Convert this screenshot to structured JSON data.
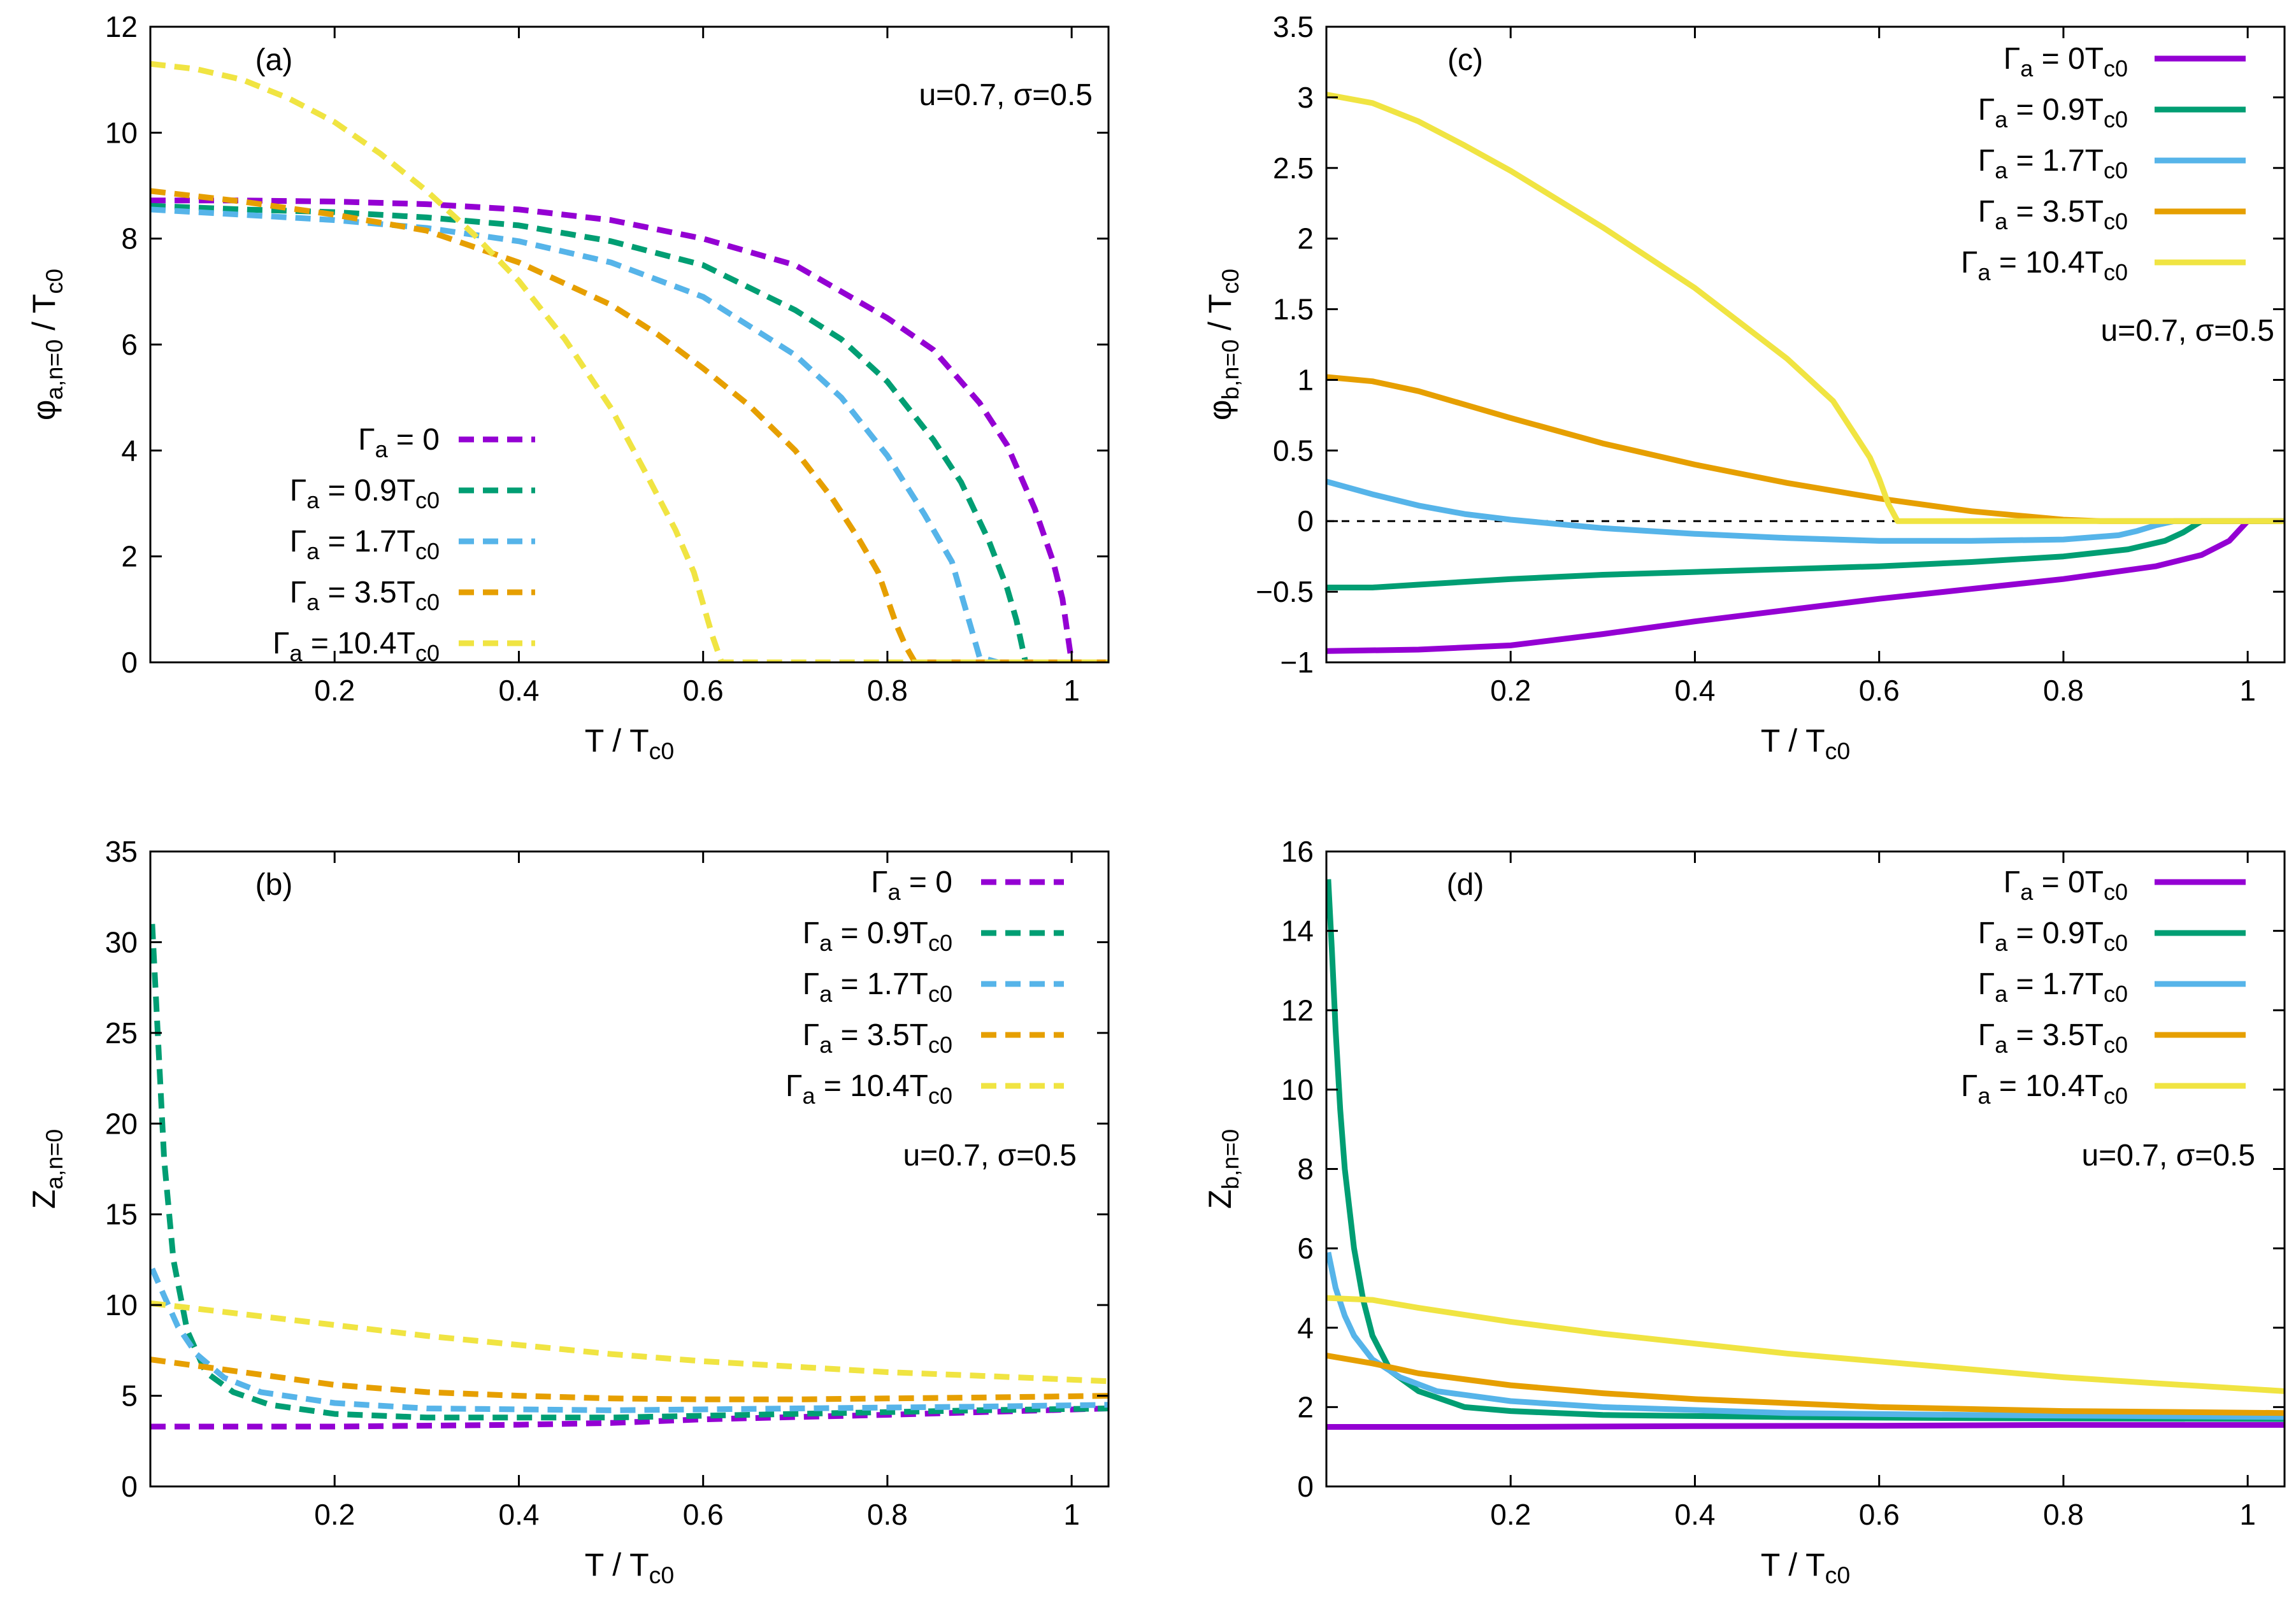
{
  "colors": {
    "purple": "#9400d3",
    "green": "#009e73",
    "skyblue": "#56b4e9",
    "orange": "#e69f00",
    "yellow": "#f0e442"
  },
  "chart_data": [
    {
      "id": "a",
      "type": "line",
      "panel_label": "(a)",
      "params": "u=0.7, σ=0.5",
      "xlabel": "T / T",
      "xlabel_sub": "c0",
      "ylabel": "φ",
      "ylabel_sub": "a,n=0",
      "ylabel_rest": " / T",
      "ylabel_sub2": "c0",
      "xlim": [
        0.0,
        1.04
      ],
      "ylim": [
        0,
        12
      ],
      "xticks": [
        "0.2",
        "0.4",
        "0.6",
        "0.8",
        "1"
      ],
      "yticks": [
        "0",
        "2",
        "4",
        "6",
        "8",
        "10",
        "12"
      ],
      "legend_position": "bottom-left",
      "line_style": "dashed",
      "series": [
        {
          "name": "Γ",
          "sub": "a",
          "rest": " = 0",
          "sub2": "",
          "color": "#9400d3",
          "x": [
            0.0,
            0.1,
            0.2,
            0.3,
            0.4,
            0.5,
            0.6,
            0.7,
            0.8,
            0.85,
            0.9,
            0.93,
            0.96,
            0.98,
            0.99,
            1.0,
            1.04
          ],
          "y": [
            8.72,
            8.72,
            8.7,
            8.65,
            8.55,
            8.35,
            8.0,
            7.5,
            6.5,
            5.9,
            4.9,
            4.1,
            2.9,
            1.9,
            1.2,
            0.0,
            0.0
          ]
        },
        {
          "name": "Γ",
          "sub": "a",
          "rest": " = 0.9T",
          "sub2": "c0",
          "color": "#009e73",
          "x": [
            0.0,
            0.1,
            0.2,
            0.3,
            0.4,
            0.5,
            0.6,
            0.7,
            0.75,
            0.8,
            0.85,
            0.88,
            0.91,
            0.93,
            0.94,
            0.95,
            1.04
          ],
          "y": [
            8.62,
            8.55,
            8.5,
            8.4,
            8.25,
            7.95,
            7.5,
            6.65,
            6.1,
            5.3,
            4.2,
            3.4,
            2.3,
            1.4,
            0.8,
            0.0,
            0.0
          ]
        },
        {
          "name": "Γ",
          "sub": "a",
          "rest": " = 1.7T",
          "sub2": "c0",
          "color": "#56b4e9",
          "x": [
            0.0,
            0.1,
            0.2,
            0.3,
            0.4,
            0.5,
            0.6,
            0.7,
            0.75,
            0.8,
            0.84,
            0.87,
            0.88,
            0.89,
            0.9,
            0.92,
            1.04
          ],
          "y": [
            8.55,
            8.45,
            8.35,
            8.2,
            7.95,
            7.55,
            6.9,
            5.8,
            5.0,
            3.9,
            2.8,
            1.9,
            1.3,
            0.7,
            0.1,
            0.0,
            0.0
          ]
        },
        {
          "name": "Γ",
          "sub": "a",
          "rest": " = 3.5T",
          "sub2": "c0",
          "color": "#e69f00",
          "x": [
            0.0,
            0.1,
            0.2,
            0.3,
            0.4,
            0.5,
            0.55,
            0.6,
            0.65,
            0.7,
            0.74,
            0.77,
            0.79,
            0.8,
            0.81,
            0.82,
            0.83,
            1.04
          ],
          "y": [
            8.9,
            8.7,
            8.45,
            8.15,
            7.55,
            6.75,
            6.2,
            5.55,
            4.85,
            4.0,
            3.1,
            2.3,
            1.7,
            1.2,
            0.7,
            0.3,
            0.0,
            0.0
          ]
        },
        {
          "name": "Γ",
          "sub": "a",
          "rest": " = 10.4T",
          "sub2": "c0",
          "color": "#f0e442",
          "x": [
            0.0,
            0.05,
            0.1,
            0.15,
            0.2,
            0.25,
            0.3,
            0.35,
            0.4,
            0.45,
            0.5,
            0.54,
            0.57,
            0.59,
            0.6,
            0.61,
            0.62,
            1.04
          ],
          "y": [
            11.3,
            11.2,
            11.0,
            10.65,
            10.2,
            9.6,
            8.9,
            8.1,
            7.2,
            6.1,
            4.8,
            3.5,
            2.5,
            1.7,
            1.1,
            0.5,
            0.0,
            0.0
          ]
        }
      ]
    },
    {
      "id": "b",
      "type": "line",
      "panel_label": "(b)",
      "params": "u=0.7, σ=0.5",
      "xlabel": "T / T",
      "xlabel_sub": "c0",
      "ylabel": "Z",
      "ylabel_sub": "a,n=0",
      "ylabel_rest": "",
      "ylabel_sub2": "",
      "xlim": [
        0.0,
        1.04
      ],
      "ylim": [
        0,
        35
      ],
      "xticks": [
        "0.2",
        "0.4",
        "0.6",
        "0.8",
        "1"
      ],
      "yticks": [
        "0",
        "5",
        "10",
        "15",
        "20",
        "25",
        "30",
        "35"
      ],
      "legend_position": "top-right",
      "line_style": "dashed",
      "series": [
        {
          "name": "Γ",
          "sub": "a",
          "rest": " = 0",
          "sub2": "",
          "color": "#9400d3",
          "x": [
            0.0,
            0.2,
            0.4,
            0.5,
            0.6,
            0.8,
            1.04
          ],
          "y": [
            3.3,
            3.3,
            3.4,
            3.5,
            3.7,
            3.95,
            4.3
          ]
        },
        {
          "name": "Γ",
          "sub": "a",
          "rest": " = 0.9T",
          "sub2": "c0",
          "color": "#009e73",
          "x": [
            0.002,
            0.008,
            0.015,
            0.025,
            0.04,
            0.06,
            0.09,
            0.13,
            0.2,
            0.3,
            0.5,
            0.7,
            0.9,
            1.04
          ],
          "y": [
            31.0,
            25.0,
            18.0,
            12.5,
            8.6,
            6.3,
            5.2,
            4.5,
            4.0,
            3.8,
            3.8,
            4.0,
            4.2,
            4.3
          ]
        },
        {
          "name": "Γ",
          "sub": "a",
          "rest": " = 1.7T",
          "sub2": "c0",
          "color": "#56b4e9",
          "x": [
            0.002,
            0.015,
            0.03,
            0.05,
            0.08,
            0.12,
            0.2,
            0.3,
            0.5,
            0.7,
            0.9,
            1.04
          ],
          "y": [
            12.0,
            10.5,
            8.8,
            7.3,
            6.0,
            5.2,
            4.6,
            4.3,
            4.2,
            4.3,
            4.4,
            4.5
          ]
        },
        {
          "name": "Γ",
          "sub": "a",
          "rest": " = 3.5T",
          "sub2": "c0",
          "color": "#e69f00",
          "x": [
            0.0,
            0.1,
            0.2,
            0.3,
            0.4,
            0.5,
            0.6,
            0.7,
            0.8,
            0.9,
            1.04
          ],
          "y": [
            7.0,
            6.3,
            5.6,
            5.2,
            5.0,
            4.85,
            4.8,
            4.8,
            4.85,
            4.9,
            5.0
          ]
        },
        {
          "name": "Γ",
          "sub": "a",
          "rest": " = 10.4T",
          "sub2": "c0",
          "color": "#f0e442",
          "x": [
            0.0,
            0.1,
            0.2,
            0.3,
            0.4,
            0.5,
            0.6,
            0.7,
            0.8,
            0.9,
            1.04
          ],
          "y": [
            10.1,
            9.5,
            8.9,
            8.3,
            7.8,
            7.3,
            6.9,
            6.6,
            6.3,
            6.1,
            5.8
          ]
        }
      ]
    },
    {
      "id": "c",
      "type": "line",
      "panel_label": "(c)",
      "params": "u=0.7, σ=0.5",
      "xlabel": "T / T",
      "xlabel_sub": "c0",
      "ylabel": "φ",
      "ylabel_sub": "b,n=0",
      "ylabel_rest": " / T",
      "ylabel_sub2": "c0",
      "xlim": [
        0.0,
        1.04
      ],
      "ylim": [
        -1,
        3.5
      ],
      "xticks": [
        "0.2",
        "0.4",
        "0.6",
        "0.8",
        "1"
      ],
      "yticks": [
        "−1",
        "−0.5",
        "0",
        "0.5",
        "1",
        "1.5",
        "2",
        "2.5",
        "3",
        "3.5"
      ],
      "ytick_values": [
        -1,
        -0.5,
        0,
        0.5,
        1,
        1.5,
        2,
        2.5,
        3,
        3.5
      ],
      "zero_line": true,
      "legend_position": "top-right",
      "line_style": "solid",
      "series": [
        {
          "name": "Γ",
          "sub": "a",
          "rest": " = 0T",
          "sub2": "c0",
          "color": "#9400d3",
          "x": [
            0.0,
            0.1,
            0.2,
            0.3,
            0.4,
            0.5,
            0.6,
            0.7,
            0.8,
            0.9,
            0.95,
            0.98,
            0.99,
            1.0,
            1.04
          ],
          "y": [
            -0.92,
            -0.91,
            -0.88,
            -0.8,
            -0.71,
            -0.63,
            -0.55,
            -0.48,
            -0.41,
            -0.32,
            -0.24,
            -0.14,
            -0.07,
            0.0,
            0.0
          ]
        },
        {
          "name": "Γ",
          "sub": "a",
          "rest": " = 0.9T",
          "sub2": "c0",
          "color": "#009e73",
          "x": [
            0.0,
            0.05,
            0.1,
            0.2,
            0.3,
            0.4,
            0.5,
            0.6,
            0.7,
            0.8,
            0.87,
            0.91,
            0.93,
            0.94,
            0.95,
            1.04
          ],
          "y": [
            -0.47,
            -0.47,
            -0.45,
            -0.41,
            -0.38,
            -0.36,
            -0.34,
            -0.32,
            -0.29,
            -0.25,
            -0.2,
            -0.14,
            -0.08,
            -0.04,
            0.0,
            0.0
          ]
        },
        {
          "name": "Γ",
          "sub": "a",
          "rest": " = 1.7T",
          "sub2": "c0",
          "color": "#56b4e9",
          "x": [
            0.0,
            0.05,
            0.1,
            0.15,
            0.2,
            0.3,
            0.4,
            0.5,
            0.6,
            0.7,
            0.8,
            0.86,
            0.88,
            0.9,
            0.92,
            1.04
          ],
          "y": [
            0.28,
            0.19,
            0.11,
            0.05,
            0.01,
            -0.05,
            -0.09,
            -0.12,
            -0.14,
            -0.14,
            -0.13,
            -0.1,
            -0.07,
            -0.03,
            0.0,
            0.0
          ]
        },
        {
          "name": "Γ",
          "sub": "a",
          "rest": " = 3.5T",
          "sub2": "c0",
          "color": "#e69f00",
          "x": [
            0.0,
            0.05,
            0.1,
            0.2,
            0.3,
            0.4,
            0.5,
            0.6,
            0.7,
            0.8,
            0.84,
            1.04
          ],
          "y": [
            1.02,
            0.99,
            0.92,
            0.73,
            0.55,
            0.4,
            0.27,
            0.16,
            0.07,
            0.01,
            0.0,
            0.0
          ]
        },
        {
          "name": "Γ",
          "sub": "a",
          "rest": " = 10.4T",
          "sub2": "c0",
          "color": "#f0e442",
          "x": [
            0.0,
            0.05,
            0.1,
            0.15,
            0.2,
            0.3,
            0.4,
            0.5,
            0.55,
            0.59,
            0.6,
            0.61,
            0.62,
            1.04
          ],
          "y": [
            3.02,
            2.96,
            2.83,
            2.66,
            2.48,
            2.08,
            1.65,
            1.15,
            0.85,
            0.45,
            0.3,
            0.12,
            0.0,
            0.0
          ]
        }
      ]
    },
    {
      "id": "d",
      "type": "line",
      "panel_label": "(d)",
      "params": "u=0.7, σ=0.5",
      "xlabel": "T / T",
      "xlabel_sub": "c0",
      "ylabel": "Z",
      "ylabel_sub": "b,n=0",
      "ylabel_rest": "",
      "ylabel_sub2": "",
      "xlim": [
        0.0,
        1.04
      ],
      "ylim": [
        0,
        16
      ],
      "xticks": [
        "0.2",
        "0.4",
        "0.6",
        "0.8",
        "1"
      ],
      "yticks": [
        "0",
        "2",
        "4",
        "6",
        "8",
        "10",
        "12",
        "14",
        "16"
      ],
      "legend_position": "top-right",
      "line_style": "solid",
      "series": [
        {
          "name": "Γ",
          "sub": "a",
          "rest": " = 0T",
          "sub2": "c0",
          "color": "#9400d3",
          "x": [
            0.0,
            0.2,
            0.4,
            0.6,
            0.8,
            1.04
          ],
          "y": [
            1.5,
            1.5,
            1.52,
            1.53,
            1.55,
            1.55
          ]
        },
        {
          "name": "Γ",
          "sub": "a",
          "rest": " = 0.9T",
          "sub2": "c0",
          "color": "#009e73",
          "x": [
            0.002,
            0.006,
            0.01,
            0.015,
            0.02,
            0.03,
            0.04,
            0.05,
            0.07,
            0.1,
            0.15,
            0.2,
            0.3,
            0.5,
            0.7,
            1.04
          ],
          "y": [
            15.3,
            13.5,
            11.5,
            9.5,
            8.0,
            6.0,
            4.7,
            3.8,
            2.9,
            2.4,
            2.0,
            1.9,
            1.8,
            1.75,
            1.72,
            1.7
          ]
        },
        {
          "name": "Γ",
          "sub": "a",
          "rest": " = 1.7T",
          "sub2": "c0",
          "color": "#56b4e9",
          "x": [
            0.002,
            0.01,
            0.02,
            0.03,
            0.05,
            0.08,
            0.12,
            0.2,
            0.3,
            0.5,
            0.7,
            1.04
          ],
          "y": [
            5.9,
            5.0,
            4.3,
            3.8,
            3.2,
            2.75,
            2.4,
            2.15,
            2.0,
            1.85,
            1.8,
            1.75
          ]
        },
        {
          "name": "Γ",
          "sub": "a",
          "rest": " = 3.5T",
          "sub2": "c0",
          "color": "#e69f00",
          "x": [
            0.0,
            0.05,
            0.1,
            0.2,
            0.3,
            0.4,
            0.5,
            0.6,
            0.7,
            0.8,
            1.04
          ],
          "y": [
            3.3,
            3.1,
            2.85,
            2.55,
            2.35,
            2.2,
            2.1,
            2.0,
            1.95,
            1.9,
            1.85
          ]
        },
        {
          "name": "Γ",
          "sub": "a",
          "rest": " = 10.4T",
          "sub2": "c0",
          "color": "#f0e442",
          "x": [
            0.0,
            0.05,
            0.1,
            0.2,
            0.3,
            0.4,
            0.5,
            0.6,
            0.7,
            0.8,
            0.9,
            1.04
          ],
          "y": [
            4.75,
            4.7,
            4.5,
            4.15,
            3.85,
            3.6,
            3.35,
            3.15,
            2.95,
            2.75,
            2.6,
            2.4
          ]
        }
      ]
    }
  ]
}
